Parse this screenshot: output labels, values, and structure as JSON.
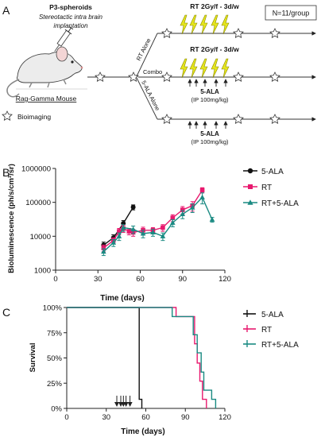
{
  "panel_a": {
    "panel_letter": "A",
    "group_size": "N=11/group",
    "spheroid_title": "P3-spheroids",
    "spheroid_sub1": "Stereotactic intra brain",
    "spheroid_sub2": "implantation",
    "mouse_label": "Rag-Gamma Mouse",
    "bioimaging_label": "Bioimaging",
    "arm_rt": "RT Alone",
    "arm_combo": "Combo",
    "arm_ala": "5-ALA Alone",
    "rt_label": "RT 2Gy/f - 3d/w",
    "ala_label": "5-ALA",
    "ala_dose": "(IP 100mg/kg)"
  },
  "colors": {
    "ala": "#111111",
    "rt": "#e8196e",
    "combo": "#1a8a82",
    "bolt": "#e6e61e"
  },
  "chart_data": [
    {
      "type": "line",
      "panel_letter": "B",
      "xlabel": "Time (days)",
      "ylabel": "Bioluminescence (ph/s/cm²/sr)",
      "xlim": [
        0,
        120
      ],
      "xticks": [
        "0",
        "30",
        "60",
        "90",
        "120"
      ],
      "ylim": [
        1000,
        1000000
      ],
      "yscale": "log",
      "yticks": [
        "1000",
        "10000",
        "100000",
        "1000000"
      ],
      "legend_position": "right",
      "series": [
        {
          "name": "5-ALA",
          "color": "#111111",
          "marker": "circle",
          "x": [
            34,
            41,
            48,
            55
          ],
          "y": [
            5500,
            9000,
            24000,
            72000
          ],
          "err": [
            1200,
            2000,
            5000,
            12000
          ]
        },
        {
          "name": "RT",
          "color": "#e8196e",
          "marker": "square",
          "x": [
            34,
            41,
            45,
            48,
            52,
            55,
            62,
            69,
            76,
            83,
            90,
            97,
            104
          ],
          "y": [
            4500,
            7500,
            14000,
            17000,
            14000,
            13000,
            15000,
            15000,
            18000,
            35000,
            60000,
            80000,
            230000
          ],
          "err": [
            1000,
            1500,
            3000,
            4000,
            3000,
            3000,
            3500,
            3000,
            4000,
            8000,
            15000,
            25000,
            40000
          ]
        },
        {
          "name": "RT+5-ALA",
          "color": "#1a8a82",
          "marker": "triangle",
          "x": [
            34,
            41,
            45,
            48,
            55,
            62,
            69,
            76,
            83,
            90,
            97,
            104,
            111
          ],
          "y": [
            3500,
            6500,
            10000,
            18000,
            16000,
            12000,
            13000,
            10000,
            25000,
            45000,
            70000,
            140000,
            31000
          ],
          "err": [
            800,
            1500,
            2500,
            4000,
            4000,
            3000,
            3000,
            2500,
            6000,
            12000,
            20000,
            50000,
            5000
          ]
        }
      ]
    },
    {
      "type": "line",
      "panel_letter": "C",
      "xlabel": "Time (days)",
      "ylabel": "Survival",
      "xlim": [
        0,
        120
      ],
      "xticks": [
        "0",
        "30",
        "60",
        "90",
        "120"
      ],
      "ylim": [
        0,
        100
      ],
      "yticks": [
        "0%",
        "25%",
        "50%",
        "75%",
        "100%"
      ],
      "legend_position": "right",
      "treatment_days": [
        38,
        41,
        43,
        45,
        48
      ],
      "series": [
        {
          "name": "5-ALA",
          "color": "#111111",
          "x": [
            0,
            55,
            55,
            57,
            57
          ],
          "y": [
            100,
            100,
            9,
            9,
            0
          ]
        },
        {
          "name": "RT",
          "color": "#e8196e",
          "x": [
            0,
            83,
            83,
            97,
            97,
            99,
            99,
            101,
            101,
            103,
            103,
            106,
            106
          ],
          "y": [
            100,
            100,
            91,
            91,
            64,
            64,
            45,
            45,
            27,
            27,
            9,
            9,
            0
          ]
        },
        {
          "name": "RT+5-ALA",
          "color": "#1a8a82",
          "x": [
            0,
            80,
            80,
            96,
            96,
            99,
            99,
            102,
            102,
            104,
            104,
            110,
            110,
            113,
            113
          ],
          "y": [
            100,
            100,
            91,
            91,
            73,
            73,
            55,
            55,
            36,
            36,
            18,
            18,
            9,
            9,
            0
          ]
        }
      ]
    }
  ]
}
